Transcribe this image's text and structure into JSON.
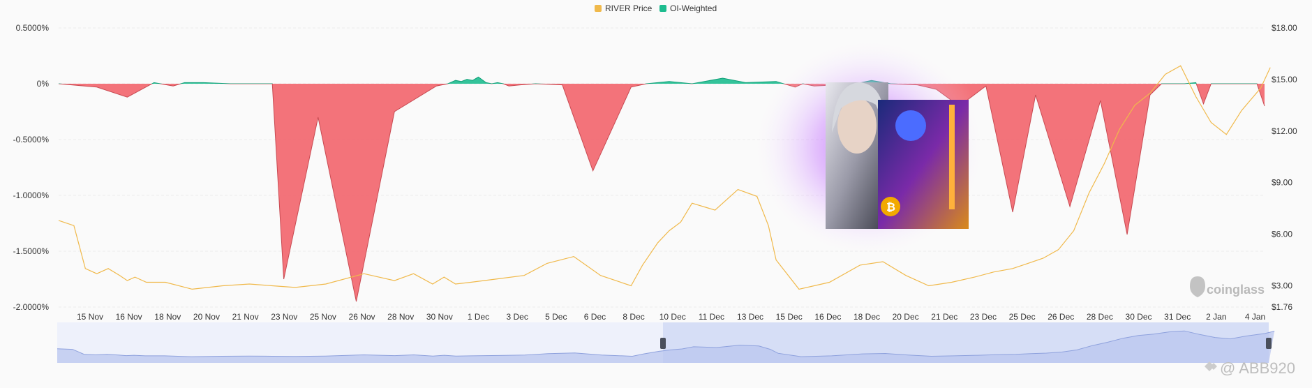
{
  "chart_data": {
    "type": "area",
    "legend": {
      "placement": "top-center",
      "items": [
        {
          "label": "RIVER Price",
          "color": "#f0b94b"
        },
        {
          "label": "OI-Weighted",
          "color": "#1dbc8f"
        }
      ]
    },
    "y_left": {
      "ticks": [
        0.5,
        0,
        -0.5,
        -1.0,
        -1.5,
        -2.0
      ],
      "tick_labels": [
        "0.5000%",
        "0%",
        "-0.5000%",
        "-1.0000%",
        "-1.5000%",
        "-2.0000%"
      ],
      "range": [
        -2.0,
        0.5
      ]
    },
    "y_right": {
      "ticks": [
        18,
        15,
        12,
        9,
        6,
        3,
        1.76
      ],
      "tick_labels": [
        "$18.00",
        "$15.00",
        "$12.00",
        "$9.00",
        "$6.00",
        "$3.00",
        "$1.76"
      ],
      "range": [
        1.76,
        18.0
      ]
    },
    "x_ticks": [
      "15 Nov",
      "16 Nov",
      "18 Nov",
      "20 Nov",
      "21 Nov",
      "23 Nov",
      "25 Nov",
      "26 Nov",
      "28 Nov",
      "30 Nov",
      "1 Dec",
      "3 Dec",
      "5 Dec",
      "6 Dec",
      "8 Dec",
      "10 Dec",
      "11 Dec",
      "13 Dec",
      "15 Dec",
      "16 Dec",
      "18 Dec",
      "20 Dec",
      "21 Dec",
      "23 Dec",
      "25 Dec",
      "26 Dec",
      "28 Dec",
      "30 Dec",
      "31 Dec",
      "2 Jan",
      "4 Jan"
    ],
    "grid": true,
    "series": [
      {
        "name": "OI-Weighted",
        "unit": "%",
        "x": [
          0,
          1.0,
          1.8,
          2.5,
          3.0,
          3.3,
          3.8,
          4.5,
          5.0,
          5.6,
          5.9,
          6.8,
          7.8,
          8.8,
          9.9,
          10.2,
          10.4,
          10.55,
          10.7,
          10.85,
          11.0,
          11.2,
          11.35,
          11.5,
          11.65,
          11.8,
          12.1,
          12.5,
          13.2,
          14.0,
          15.0,
          15.4,
          16.0,
          16.6,
          17.4,
          18.0,
          18.8,
          19.2,
          19.3,
          19.5,
          19.8,
          20.4,
          20.9,
          21.3,
          21.8,
          22.5,
          23.0,
          23.6,
          24.3,
          25.0,
          25.6,
          26.5,
          27.3,
          28.0,
          28.6,
          28.9,
          29.2,
          29.5,
          29.8,
          30.0,
          30.2,
          30.4,
          30.6,
          30.8,
          31.0,
          31.2,
          31.4,
          31.6
        ],
        "values": [
          0,
          -0.03,
          -0.12,
          0.01,
          -0.02,
          0.01,
          0.01,
          0.0,
          0.0,
          0.0,
          -1.75,
          -0.3,
          -1.95,
          -0.25,
          -0.02,
          0.0,
          0.03,
          0.02,
          0.04,
          0.03,
          0.06,
          0.01,
          0.0,
          0.01,
          0.0,
          -0.02,
          -0.01,
          0.0,
          -0.01,
          -0.78,
          -0.03,
          0.0,
          0.02,
          0.0,
          0.05,
          0.01,
          0.02,
          -0.02,
          -0.03,
          0.0,
          -0.02,
          -0.01,
          0.0,
          0.03,
          0.0,
          -0.01,
          -0.05,
          -0.2,
          -0.02,
          -1.15,
          -0.1,
          -1.1,
          -0.15,
          -1.35,
          -0.1,
          0.0,
          0.0,
          0.0,
          0.01,
          -0.18,
          0.0,
          0.0,
          0.0,
          0.0,
          0.0,
          0.0,
          0.0,
          -0.2
        ]
      },
      {
        "name": "RIVER Price",
        "unit": "$",
        "x": [
          0,
          0.4,
          0.7,
          1.0,
          1.3,
          1.6,
          1.8,
          2.0,
          2.3,
          2.8,
          3.5,
          4.3,
          5.0,
          5.6,
          6.2,
          7.0,
          8.0,
          8.8,
          9.3,
          9.8,
          10.1,
          10.4,
          10.8,
          11.5,
          12.2,
          12.8,
          13.5,
          14.2,
          14.6,
          15.0,
          15.3,
          15.7,
          16.0,
          16.3,
          16.6,
          17.2,
          17.8,
          18.3,
          18.6,
          18.8,
          19.4,
          20.2,
          21.0,
          21.6,
          22.2,
          22.8,
          23.4,
          24.0,
          24.5,
          25.0,
          25.4,
          25.8,
          26.2,
          26.6,
          27.0,
          27.4,
          27.8,
          28.2,
          28.6,
          29.0,
          29.4,
          29.8,
          30.2,
          30.6,
          31.0,
          31.5,
          31.75
        ],
        "values": [
          6.8,
          6.5,
          4.0,
          3.7,
          4.0,
          3.6,
          3.3,
          3.5,
          3.2,
          3.2,
          2.8,
          3.0,
          3.1,
          3.0,
          2.9,
          3.1,
          3.7,
          3.3,
          3.7,
          3.1,
          3.5,
          3.1,
          3.2,
          3.4,
          3.6,
          4.3,
          4.7,
          3.6,
          3.3,
          3.0,
          4.2,
          5.5,
          6.2,
          6.7,
          7.8,
          7.4,
          8.6,
          8.2,
          6.5,
          4.5,
          2.8,
          3.2,
          4.2,
          4.4,
          3.6,
          3.0,
          3.2,
          3.5,
          3.8,
          4.0,
          4.3,
          4.6,
          5.1,
          6.2,
          8.4,
          10.1,
          12.1,
          13.5,
          14.2,
          15.3,
          15.8,
          14.0,
          12.5,
          11.8,
          13.2,
          14.5,
          15.7
        ]
      }
    ],
    "navigator": {
      "range_start": 0.5,
      "range_end": 1.0
    }
  },
  "watermark": {
    "text": "coinglass"
  },
  "credit": {
    "text": "@ ABB920"
  }
}
